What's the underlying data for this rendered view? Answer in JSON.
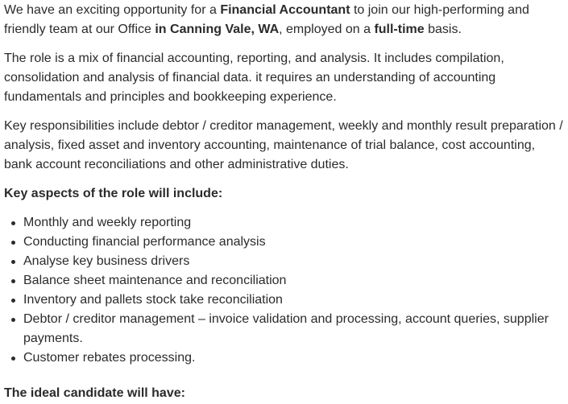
{
  "intro": {
    "t1": "We have an exciting opportunity for a ",
    "b1": "Financial Accountant",
    "t2": " to join our high-performing and friendly team at our Office ",
    "b2": "in Canning Vale, WA",
    "t3": ", employed on a ",
    "b3": "full-time",
    "t4": " basis."
  },
  "role_paragraph": "The role is a mix of financial accounting, reporting, and analysis. It includes compilation, consolidation and analysis of financial data. it requires an understanding of accounting fundamentals and principles and bookkeeping experience.",
  "responsibilities_paragraph": "Key responsibilities include debtor / creditor management, weekly and monthly result preparation / analysis, fixed asset and inventory accounting, maintenance of trial balance, cost accounting, bank account reconciliations and other administrative duties.",
  "aspects": {
    "heading": "Key aspects of the role will include:",
    "items": [
      "Monthly and weekly reporting",
      "Conducting financial performance analysis",
      "Analyse key business drivers",
      "Balance sheet maintenance and reconciliation",
      "Inventory and pallets stock take reconciliation",
      "Debtor / creditor management – invoice validation and processing, account queries, supplier payments.",
      "Customer rebates processing."
    ]
  },
  "candidate": {
    "heading": "The ideal candidate will have:"
  }
}
